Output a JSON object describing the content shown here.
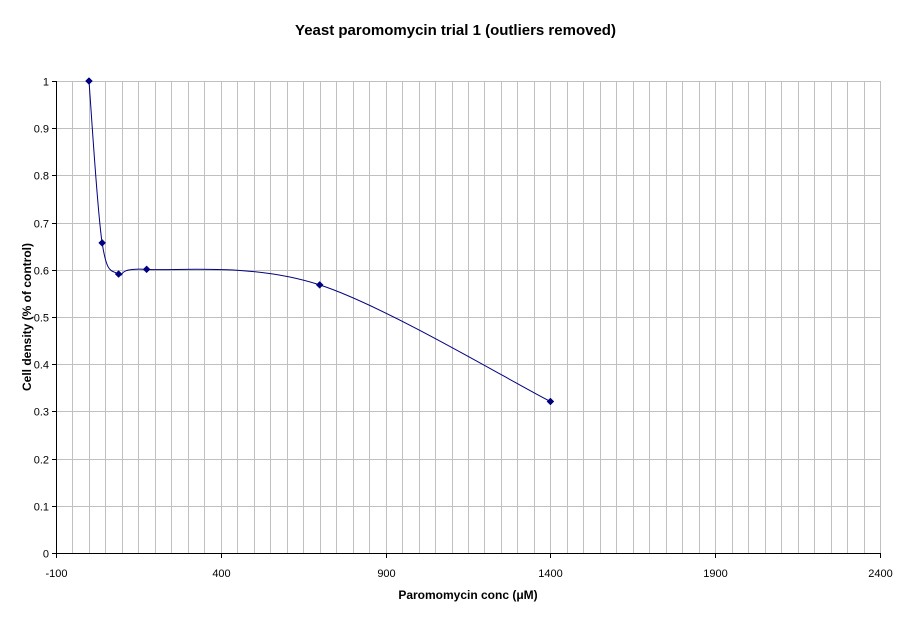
{
  "chart_data": {
    "type": "line",
    "title": "Yeast paromomycin trial 1 (outliers removed)",
    "xlabel": "Paromomycin conc (μM)",
    "ylabel": "Cell density (%  of control)",
    "xlim": [
      -100,
      2400
    ],
    "ylim": [
      0,
      1
    ],
    "x_ticks": [
      "-100",
      "400",
      "900",
      "1400",
      "1900",
      "2400"
    ],
    "y_ticks": [
      "0",
      "0.1",
      "0.2",
      "0.3",
      "0.4",
      "0.5",
      "0.6",
      "0.7",
      "0.8",
      "0.9",
      "1"
    ],
    "x_minor_step": 50,
    "grid": true,
    "smoothed": true,
    "series": [
      {
        "color": "#000080",
        "marker": "diamond",
        "x": [
          0,
          40,
          90,
          175,
          700,
          1400
        ],
        "y": [
          1.0,
          0.657,
          0.591,
          0.601,
          0.568,
          0.321
        ]
      }
    ]
  }
}
